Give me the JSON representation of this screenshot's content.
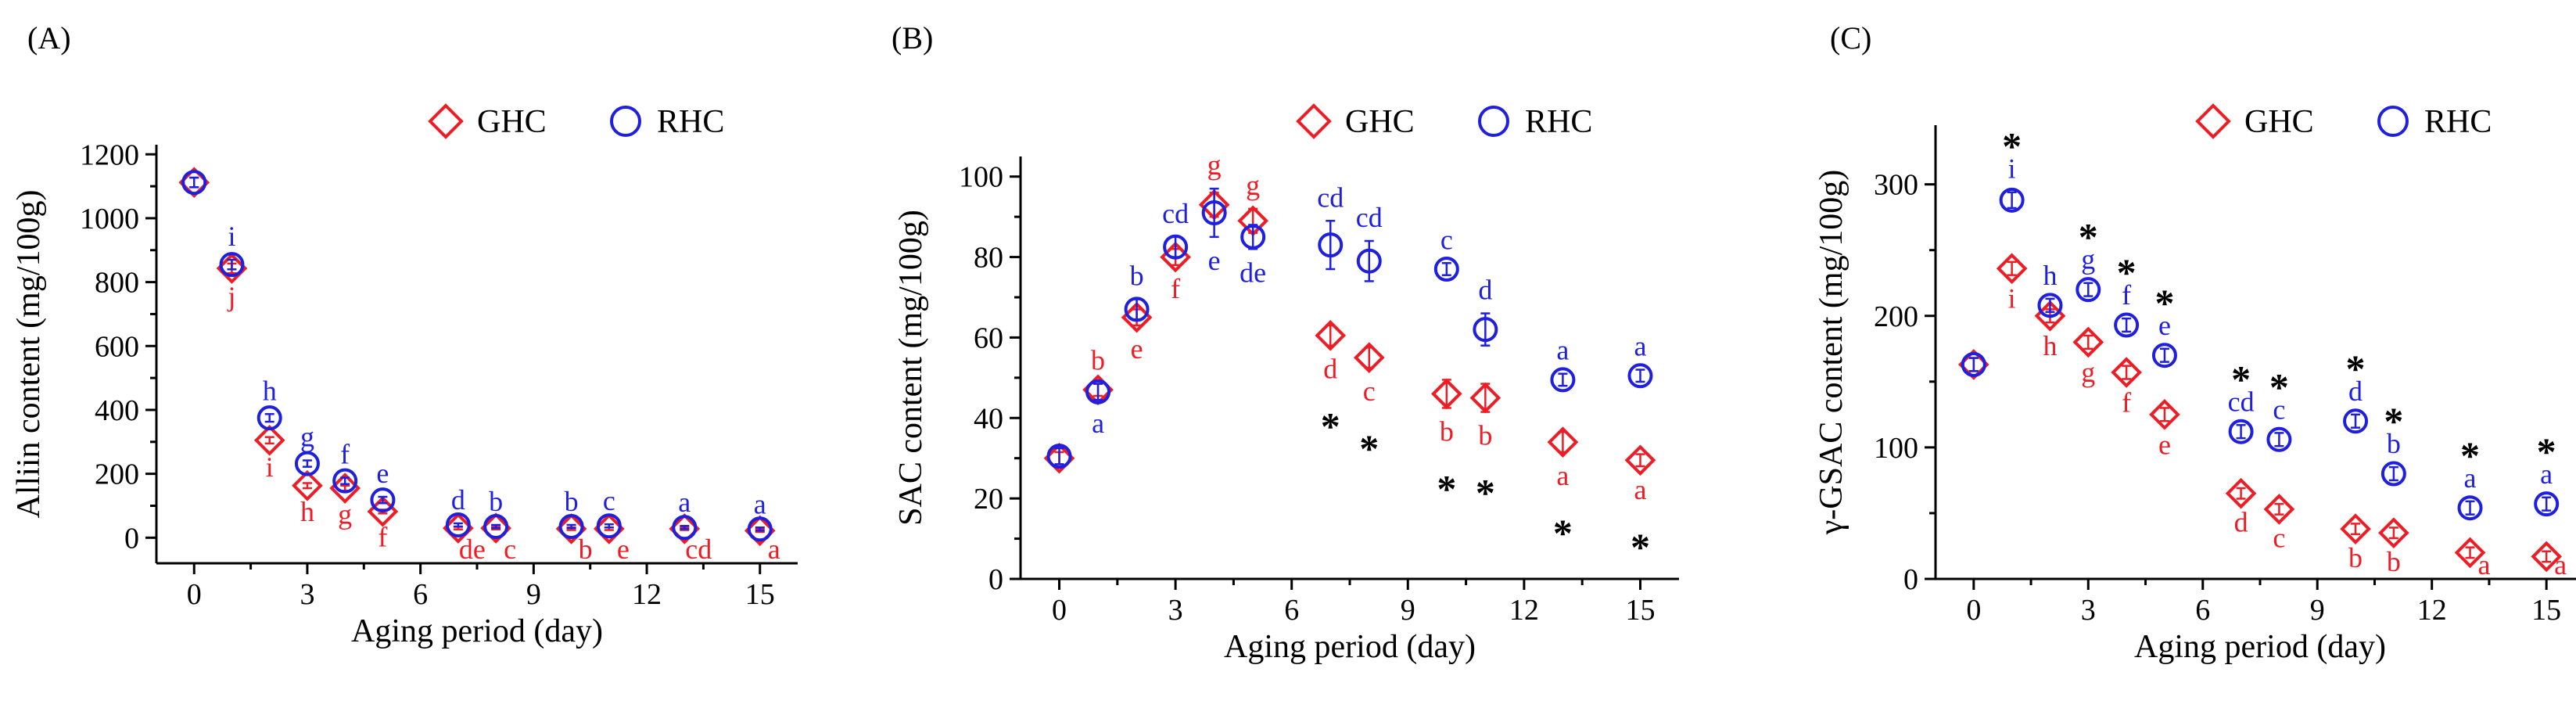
{
  "chart_data": [
    {
      "type": "scatter",
      "panel_label": "(A)",
      "xlabel": "Aging period (day)",
      "ylabel": "Alliin content (mg/100g)",
      "xlim": [
        -1,
        16
      ],
      "ylim": [
        -80,
        1230
      ],
      "xticks": [
        0,
        3,
        6,
        9,
        12,
        15
      ],
      "yticks": [
        0,
        200,
        400,
        600,
        800,
        1000,
        1200
      ],
      "legend_position": "top-right",
      "colors": {
        "GHC": "#ee1c24",
        "RHC": "#1f1fe0",
        "asterisk": "#000000"
      },
      "x": [
        0,
        1,
        2,
        3,
        4,
        5,
        7,
        8,
        10,
        11,
        13,
        15
      ],
      "series": [
        {
          "name": "GHC",
          "marker": "diamond",
          "values": [
            1112,
            843,
            305,
            163,
            155,
            82,
            30,
            30,
            28,
            28,
            28,
            22
          ],
          "errors": [
            15,
            15,
            10,
            8,
            8,
            6,
            4,
            4,
            4,
            4,
            4,
            4
          ],
          "letters": [
            "",
            "j",
            "i",
            "h",
            "g",
            "f",
            "de",
            "c",
            "b",
            "e",
            "cd",
            "a"
          ]
        },
        {
          "name": "RHC",
          "marker": "circle",
          "values": [
            1112,
            855,
            375,
            232,
            178,
            118,
            40,
            35,
            35,
            37,
            32,
            27
          ],
          "errors": [
            15,
            15,
            12,
            10,
            10,
            10,
            5,
            5,
            5,
            5,
            5,
            5
          ],
          "letters": [
            "",
            "i",
            "h",
            "g",
            "f",
            "e",
            "d",
            "b",
            "b",
            "c",
            "a",
            "a"
          ]
        }
      ],
      "asterisks": []
    },
    {
      "type": "scatter",
      "panel_label": "(B)",
      "xlabel": "Aging period (day)",
      "ylabel": "SAC content (mg/100g)",
      "xlim": [
        -1,
        16
      ],
      "ylim": [
        0,
        105
      ],
      "xticks": [
        0,
        3,
        6,
        9,
        12,
        15
      ],
      "yticks": [
        0,
        20,
        40,
        60,
        80,
        100
      ],
      "legend_position": "top-right",
      "colors": {
        "GHC": "#ee1c24",
        "RHC": "#1f1fe0",
        "asterisk": "#000000"
      },
      "x": [
        0,
        1,
        2,
        3,
        4,
        5,
        7,
        8,
        10,
        11,
        13,
        15
      ],
      "series": [
        {
          "name": "GHC",
          "marker": "diamond",
          "values": [
            30,
            47,
            65,
            80,
            93,
            89,
            60.5,
            55,
            46,
            45,
            34,
            29.5
          ],
          "errors": [
            1.5,
            1.5,
            2,
            2,
            3,
            3,
            2.5,
            2.5,
            3.5,
            3.5,
            2.5,
            1.5
          ],
          "letters": [
            "",
            "b",
            "e",
            "f",
            "g",
            "g",
            "d",
            "c",
            "b",
            "b",
            "a",
            "a"
          ]
        },
        {
          "name": "RHC",
          "marker": "circle",
          "values": [
            30.5,
            46.5,
            67,
            82.5,
            91,
            85,
            83,
            79,
            77,
            62,
            49.5,
            50.5
          ],
          "errors": [
            2,
            2,
            2.5,
            2.5,
            6,
            3,
            6,
            5,
            1.5,
            4,
            1.5,
            1.5
          ],
          "letters": [
            "",
            "a",
            "b",
            "cd",
            "e",
            "de",
            "cd",
            "cd",
            "c",
            "d",
            "a",
            "a"
          ]
        }
      ],
      "asterisks": [
        7,
        8,
        10,
        11,
        13,
        15
      ]
    },
    {
      "type": "scatter",
      "panel_label": "(C)",
      "xlabel": "Aging period (day)",
      "ylabel": "γ-GSAC content (mg/100g)",
      "xlim": [
        -1,
        16
      ],
      "ylim": [
        0,
        345
      ],
      "xticks": [
        0,
        3,
        6,
        9,
        12,
        15
      ],
      "yticks": [
        0,
        100,
        200,
        300
      ],
      "legend_position": "top-right",
      "colors": {
        "GHC": "#ee1c24",
        "RHC": "#1f1fe0",
        "asterisk": "#000000"
      },
      "x": [
        0,
        1,
        2,
        3,
        4,
        5,
        7,
        8,
        10,
        11,
        13,
        15
      ],
      "series": [
        {
          "name": "GHC",
          "marker": "diamond",
          "values": [
            163,
            236,
            200,
            180,
            157,
            125,
            65,
            53,
            38,
            35,
            20,
            17
          ],
          "errors": [
            5,
            5,
            5,
            5,
            5,
            5,
            4,
            4,
            4,
            4,
            4,
            4
          ],
          "letters": [
            "",
            "i",
            "h",
            "g",
            "f",
            "e",
            "d",
            "c",
            "b",
            "b",
            "a",
            "a"
          ]
        },
        {
          "name": "RHC",
          "marker": "circle",
          "values": [
            163,
            288,
            208,
            220,
            193,
            170,
            112,
            106,
            120,
            80,
            54,
            57
          ],
          "errors": [
            5,
            6,
            5,
            5,
            5,
            5,
            5,
            5,
            5,
            5,
            5,
            5
          ],
          "letters": [
            "",
            "i",
            "h",
            "g",
            "f",
            "e",
            "cd",
            "c",
            "d",
            "b",
            "a",
            "a"
          ]
        }
      ],
      "asterisks": [
        1,
        3,
        4,
        5,
        7,
        8,
        10,
        11,
        13,
        15
      ]
    }
  ]
}
